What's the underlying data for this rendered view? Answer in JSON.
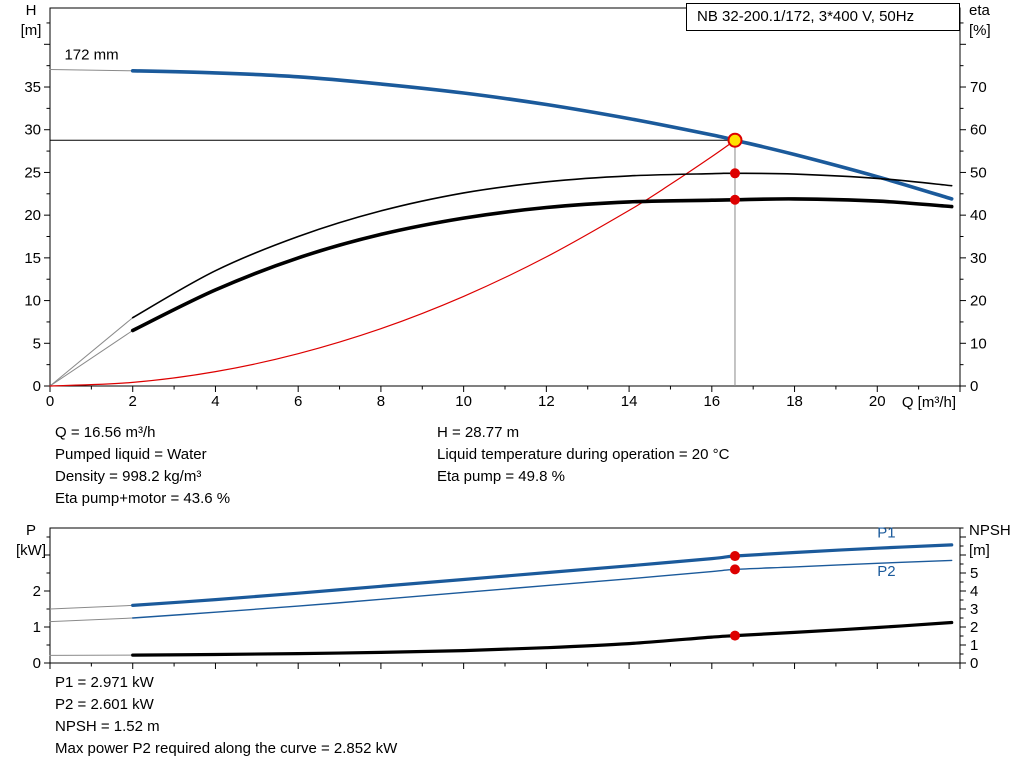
{
  "chart_data": [
    {
      "type": "line",
      "name": "qh-eta-chart",
      "title": "NB 32-200.1/172, 3*400 V, 50Hz",
      "x_axis": {
        "label": "Q [m³/h]",
        "min": 0,
        "max": 22,
        "major_step": 2,
        "minor_step": 1,
        "labeled_ticks": [
          0,
          2,
          4,
          6,
          8,
          10,
          12,
          14,
          16,
          18,
          20
        ]
      },
      "y_left": {
        "label_lines": [
          "H",
          "[m]"
        ],
        "min": 0,
        "max": 44.25,
        "major_step": 5,
        "minor_step": 2.5,
        "labeled_ticks": [
          0,
          5,
          10,
          15,
          20,
          25,
          30,
          35
        ]
      },
      "y_right": {
        "label_lines": [
          "eta",
          "[%]"
        ],
        "min": 0,
        "max": 88.5,
        "major_step": 10,
        "minor_step": 5,
        "labeled_ticks": [
          0,
          10,
          20,
          30,
          40,
          50,
          60,
          70
        ]
      },
      "annotations": [
        {
          "text": "172 mm",
          "x": 0.35,
          "y": 38.2,
          "axis": "left"
        }
      ],
      "crosshair": {
        "q": 16.56,
        "h": 28.77
      },
      "series": [
        {
          "name": "h-curve-extension",
          "axis": "left",
          "color": "#8a8a8a",
          "width": 1,
          "points": [
            [
              0,
              37.05
            ],
            [
              2,
              36.9
            ]
          ]
        },
        {
          "name": "eta-pump-extension",
          "axis": "right",
          "color": "#8a8a8a",
          "width": 1,
          "points": [
            [
              0,
              0
            ],
            [
              2,
              16
            ]
          ]
        },
        {
          "name": "eta-pump-motor-extension",
          "axis": "right",
          "color": "#8a8a8a",
          "width": 1,
          "points": [
            [
              0,
              0
            ],
            [
              2,
              13
            ]
          ]
        },
        {
          "name": "system-curve",
          "axis": "left",
          "color": "#dd0000",
          "width": 1.2,
          "points": [
            [
              0,
              0
            ],
            [
              2,
              0.42
            ],
            [
              4,
              1.68
            ],
            [
              6,
              3.78
            ],
            [
              8,
              6.71
            ],
            [
              10,
              10.49
            ],
            [
              12,
              15.11
            ],
            [
              14,
              20.56
            ],
            [
              15,
              23.61
            ],
            [
              16,
              26.86
            ],
            [
              16.56,
              28.77
            ]
          ]
        },
        {
          "name": "h-curve",
          "axis": "left",
          "color": "#1b5a9b",
          "width": 3.6,
          "points": [
            [
              2,
              36.9
            ],
            [
              4,
              36.65
            ],
            [
              6,
              36.2
            ],
            [
              8,
              35.35
            ],
            [
              10,
              34.3
            ],
            [
              12,
              32.95
            ],
            [
              14,
              31.3
            ],
            [
              16,
              29.4
            ],
            [
              16.56,
              28.77
            ],
            [
              18,
              27.1
            ],
            [
              20,
              24.5
            ],
            [
              21.8,
              21.9
            ]
          ]
        },
        {
          "name": "eta-pump-curve",
          "axis": "right",
          "color": "#000000",
          "width": 1.6,
          "points": [
            [
              2,
              16
            ],
            [
              4,
              27
            ],
            [
              6,
              35
            ],
            [
              8,
              41
            ],
            [
              10,
              45.2
            ],
            [
              12,
              47.8
            ],
            [
              14,
              49.2
            ],
            [
              16,
              49.7
            ],
            [
              16.56,
              49.8
            ],
            [
              18,
              49.6
            ],
            [
              20,
              48.6
            ],
            [
              21.8,
              46.9
            ]
          ]
        },
        {
          "name": "eta-pump-motor-curve",
          "axis": "right",
          "color": "#000000",
          "width": 3.6,
          "points": [
            [
              2,
              13
            ],
            [
              4,
              22.5
            ],
            [
              6,
              30
            ],
            [
              8,
              35.5
            ],
            [
              10,
              39.3
            ],
            [
              12,
              41.8
            ],
            [
              14,
              43.1
            ],
            [
              16,
              43.5
            ],
            [
              16.56,
              43.6
            ],
            [
              18,
              43.8
            ],
            [
              20,
              43.3
            ],
            [
              21.8,
              42
            ]
          ]
        }
      ],
      "markers": [
        {
          "name": "duty-point-marker",
          "axis": "left",
          "x": 16.56,
          "y": 28.77,
          "r": 6.5,
          "fill": "#ffe000",
          "stroke": "#dd0000",
          "stroke_width": 2
        },
        {
          "name": "eta-pump-point",
          "axis": "right",
          "x": 16.56,
          "y": 49.8,
          "r": 5,
          "fill": "#dd0000"
        },
        {
          "name": "eta-pump-motor-point",
          "axis": "right",
          "x": 16.56,
          "y": 43.6,
          "r": 5,
          "fill": "#dd0000"
        }
      ]
    },
    {
      "type": "line",
      "name": "power-npsh-chart",
      "x_axis": {
        "label": "",
        "min": 0,
        "max": 22,
        "major_step": 2,
        "minor_step": 1,
        "labeled_ticks": []
      },
      "y_left": {
        "label_lines": [
          "P",
          "[kW]"
        ],
        "min": 0,
        "max": 3.75,
        "major_step": 1,
        "minor_step": 0.5,
        "labeled_ticks": [
          0,
          1,
          2
        ]
      },
      "y_right": {
        "label_lines": [
          "NPSH",
          "[m]"
        ],
        "min": 0,
        "max": 7.5,
        "major_step": 1,
        "minor_step": 0.5,
        "labeled_ticks": [
          0,
          1,
          2,
          3,
          4,
          5
        ]
      },
      "annotations": [],
      "series": [
        {
          "name": "p1-extension",
          "axis": "left",
          "color": "#8a8a8a",
          "width": 1,
          "points": [
            [
              0,
              1.5
            ],
            [
              2,
              1.6
            ]
          ]
        },
        {
          "name": "p2-extension",
          "axis": "left",
          "color": "#8a8a8a",
          "width": 1,
          "points": [
            [
              0,
              1.15
            ],
            [
              2,
              1.25
            ]
          ]
        },
        {
          "name": "npsh-extension",
          "axis": "right",
          "color": "#8a8a8a",
          "width": 1,
          "points": [
            [
              0,
              0.42
            ],
            [
              2,
              0.44
            ]
          ]
        },
        {
          "name": "p1-curve",
          "axis": "left",
          "color": "#1b5a9b",
          "width": 3.2,
          "label": {
            "text": "P1",
            "x": 20.0,
            "y": 3.48
          },
          "points": [
            [
              2,
              1.6
            ],
            [
              4,
              1.76
            ],
            [
              6,
              1.94
            ],
            [
              8,
              2.13
            ],
            [
              10,
              2.32
            ],
            [
              12,
              2.51
            ],
            [
              14,
              2.7
            ],
            [
              16,
              2.9
            ],
            [
              16.56,
              2.971
            ],
            [
              18,
              3.07
            ],
            [
              20,
              3.19
            ],
            [
              21.8,
              3.28
            ]
          ]
        },
        {
          "name": "p2-curve",
          "axis": "left",
          "color": "#1b5a9b",
          "width": 1.4,
          "label": {
            "text": "P2",
            "x": 20.0,
            "y": 2.42
          },
          "points": [
            [
              2,
              1.25
            ],
            [
              4,
              1.41
            ],
            [
              6,
              1.58
            ],
            [
              8,
              1.77
            ],
            [
              10,
              1.96
            ],
            [
              12,
              2.15
            ],
            [
              14,
              2.34
            ],
            [
              16,
              2.54
            ],
            [
              16.56,
              2.601
            ],
            [
              18,
              2.67
            ],
            [
              20,
              2.77
            ],
            [
              21.8,
              2.85
            ]
          ]
        },
        {
          "name": "npsh-curve",
          "axis": "right",
          "color": "#000000",
          "width": 3.2,
          "points": [
            [
              2,
              0.44
            ],
            [
              4,
              0.47
            ],
            [
              6,
              0.52
            ],
            [
              8,
              0.59
            ],
            [
              10,
              0.69
            ],
            [
              12,
              0.85
            ],
            [
              14,
              1.08
            ],
            [
              16,
              1.44
            ],
            [
              16.56,
              1.52
            ],
            [
              18,
              1.7
            ],
            [
              20,
              1.97
            ],
            [
              21.8,
              2.25
            ]
          ]
        }
      ],
      "markers": [
        {
          "name": "p1-point",
          "axis": "left",
          "x": 16.56,
          "y": 2.971,
          "r": 5,
          "fill": "#dd0000"
        },
        {
          "name": "p2-point",
          "axis": "left",
          "x": 16.56,
          "y": 2.601,
          "r": 5,
          "fill": "#dd0000"
        },
        {
          "name": "npsh-point",
          "axis": "right",
          "x": 16.56,
          "y": 1.52,
          "r": 5,
          "fill": "#dd0000"
        }
      ]
    }
  ],
  "info_top": {
    "left": [
      "Q = 16.56 m³/h",
      "Pumped liquid = Water",
      "Density = 998.2 kg/m³",
      "Eta pump+motor = 43.6 %"
    ],
    "right": [
      "H = 28.77 m",
      "Liquid temperature during operation = 20 °C",
      "Eta pump = 49.8 %"
    ]
  },
  "info_bottom": {
    "lines": [
      "P1 = 2.971 kW",
      "P2 = 2.601 kW",
      "NPSH = 1.52 m",
      "Max power P2 required along the curve = 2.852 kW"
    ]
  }
}
